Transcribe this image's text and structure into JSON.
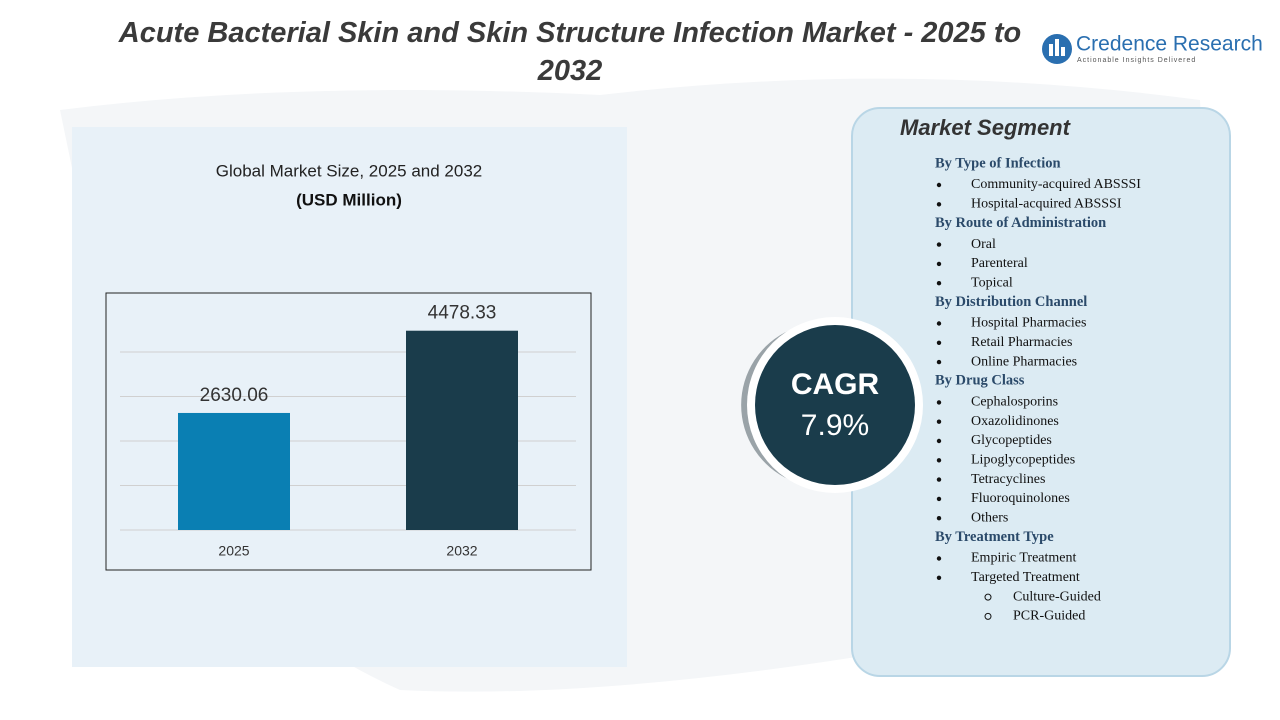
{
  "header": {
    "title": "Acute Bacterial Skin and Skin Structure Infection Market - 2025 to 2032",
    "logo_name": "Credence Research",
    "logo_tagline": "Actionable Insights Delivered"
  },
  "chart_data": {
    "type": "bar",
    "title": "Global Market Size, 2025 and 2032",
    "subtitle": "(USD Million)",
    "categories": [
      "2025",
      "2032"
    ],
    "values": [
      2630.06,
      4478.33
    ],
    "colors": [
      "#0a7fb3",
      "#1a3c4b"
    ],
    "ylim": [
      0,
      5000
    ],
    "yticks": [
      0,
      1000,
      2000,
      3000,
      4000
    ],
    "grid": true
  },
  "cagr": {
    "label": "CAGR",
    "value": "7.9%"
  },
  "segments": {
    "title": "Market Segment",
    "groups": [
      {
        "name": "By Type of Infection",
        "items": [
          {
            "text": "Community-acquired ABSSSI"
          },
          {
            "text": "Hospital-acquired ABSSSI"
          }
        ]
      },
      {
        "name": "By Route of Administration",
        "items": [
          {
            "text": "Oral"
          },
          {
            "text": "Parenteral"
          },
          {
            "text": "Topical"
          }
        ]
      },
      {
        "name": "By Distribution Channel",
        "items": [
          {
            "text": "Hospital Pharmacies"
          },
          {
            "text": "Retail Pharmacies"
          },
          {
            "text": "Online Pharmacies"
          }
        ]
      },
      {
        "name": "By Drug Class",
        "items": [
          {
            "text": "Cephalosporins"
          },
          {
            "text": "Oxazolidinones"
          },
          {
            "text": "Glycopeptides"
          },
          {
            "text": "Lipoglycopeptides"
          },
          {
            "text": "Tetracyclines"
          },
          {
            "text": "Fluoroquinolones"
          },
          {
            "text": "Others"
          }
        ]
      },
      {
        "name": "By Treatment Type",
        "items": [
          {
            "text": "Empiric Treatment"
          },
          {
            "text": "Targeted Treatment",
            "sub": [
              "Culture-Guided",
              "PCR-Guided"
            ]
          }
        ]
      }
    ]
  }
}
